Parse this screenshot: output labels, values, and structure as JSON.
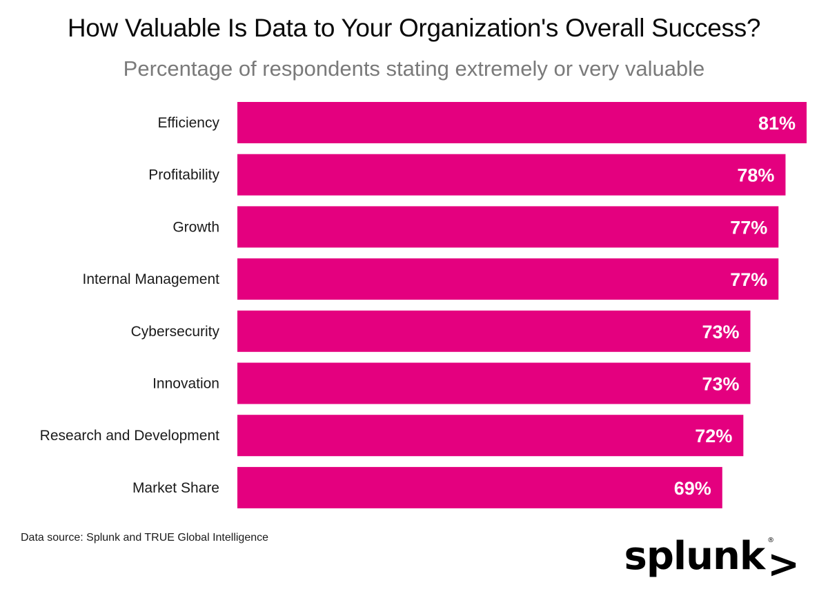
{
  "chart_data": {
    "type": "bar",
    "orientation": "horizontal",
    "title": "How Valuable Is Data to Your Organization's Overall Success?",
    "subtitle": "Percentage of respondents stating extremely or very valuable",
    "categories": [
      "Efficiency",
      "Profitability",
      "Growth",
      "Internal Management",
      "Cybersecurity",
      "Innovation",
      "Research and Development",
      "Market Share"
    ],
    "values": [
      81,
      78,
      77,
      77,
      73,
      73,
      72,
      69
    ],
    "value_labels": [
      "81%",
      "78%",
      "77%",
      "77%",
      "73%",
      "73%",
      "72%",
      "69%"
    ],
    "unit": "%",
    "xlim": [
      0,
      81
    ],
    "xlabel": "",
    "ylabel": "",
    "grid": false,
    "legend": "none",
    "bar_color": "#e4007f"
  },
  "footer": {
    "source": "Data source: Splunk and TRUE Global Intelligence"
  },
  "logo": {
    "text": "splunk",
    "mark": ">",
    "registered": "®"
  },
  "colors": {
    "bar": "#e4007f",
    "title": "#0a0a0a",
    "subtitle": "#7a7a7a"
  }
}
